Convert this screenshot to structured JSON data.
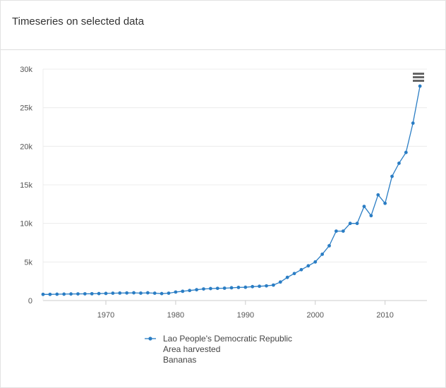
{
  "panel": {
    "title": "Timeseries on selected data"
  },
  "menu": {
    "icon": "hamburger-menu-icon"
  },
  "colors": {
    "series": "#2a7dc4",
    "grid": "#ececec",
    "axis": "#cccccc"
  },
  "chart_data": {
    "type": "line",
    "title": "",
    "xlabel": "",
    "ylabel": "",
    "xlim": [
      1961,
      2016
    ],
    "ylim": [
      0,
      30000
    ],
    "x_ticks": [
      1970,
      1980,
      1990,
      2000,
      2010
    ],
    "x_tick_labels": [
      "1970",
      "1980",
      "1990",
      "2000",
      "2010"
    ],
    "y_ticks": [
      0,
      5000,
      10000,
      15000,
      20000,
      25000,
      30000
    ],
    "y_tick_labels": [
      "0",
      "5k",
      "10k",
      "15k",
      "20k",
      "25k",
      "30k"
    ],
    "grid": "horizontal",
    "legend_position": "bottom",
    "series": [
      {
        "name_lines": [
          "Lao People's Democratic Republic",
          "Area harvested",
          "Bananas"
        ],
        "x": [
          1961,
          1962,
          1963,
          1964,
          1965,
          1966,
          1967,
          1968,
          1969,
          1970,
          1971,
          1972,
          1973,
          1974,
          1975,
          1976,
          1977,
          1978,
          1979,
          1980,
          1981,
          1982,
          1983,
          1984,
          1985,
          1986,
          1987,
          1988,
          1989,
          1990,
          1991,
          1992,
          1993,
          1994,
          1995,
          1996,
          1997,
          1998,
          1999,
          2000,
          2001,
          2002,
          2003,
          2004,
          2005,
          2006,
          2007,
          2008,
          2009,
          2010,
          2011,
          2012,
          2013,
          2014,
          2015
        ],
        "y": [
          800,
          800,
          820,
          830,
          850,
          860,
          870,
          880,
          900,
          920,
          950,
          970,
          980,
          1000,
          960,
          1000,
          950,
          900,
          950,
          1100,
          1200,
          1300,
          1400,
          1500,
          1550,
          1580,
          1600,
          1650,
          1700,
          1720,
          1800,
          1850,
          1900,
          2000,
          2400,
          3000,
          3500,
          4000,
          4500,
          5000,
          6000,
          7100,
          9000,
          9000,
          10000,
          10000,
          12200,
          11000,
          13700,
          12600,
          16100,
          17800,
          19200,
          23000,
          27800
        ]
      }
    ]
  }
}
